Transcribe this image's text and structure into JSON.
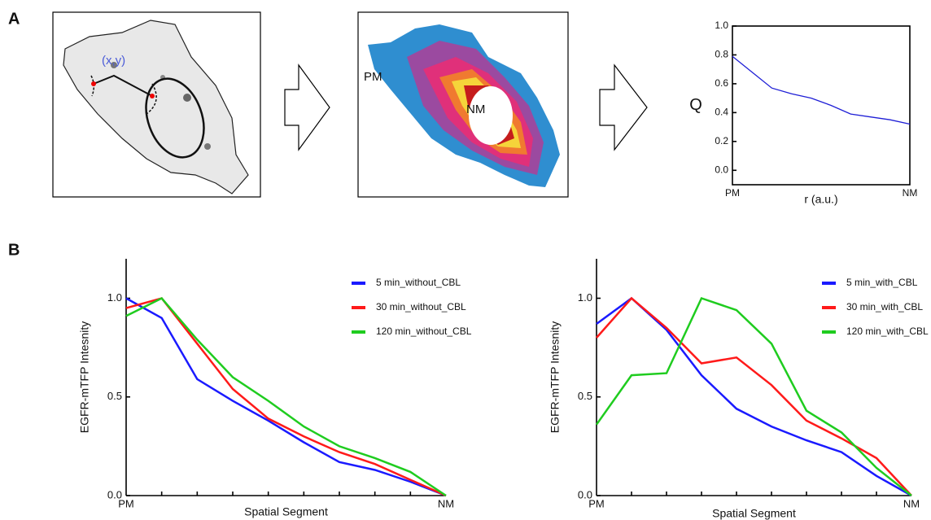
{
  "panels": [
    "A",
    "B"
  ],
  "images": [
    {
      "labels": [
        "(x,y)"
      ]
    },
    {
      "labels": [
        "PM",
        "NM"
      ]
    }
  ],
  "chart_data": [
    {
      "type": "line",
      "xlabel": "r (a.u.)",
      "ylabel": "Q",
      "categories": [
        "PM",
        null,
        null,
        null,
        null,
        null,
        null,
        null,
        null,
        "NM"
      ],
      "values": [
        0.79,
        0.68,
        0.57,
        0.53,
        0.5,
        0.45,
        0.39,
        0.37,
        0.35,
        0.32
      ],
      "color": "#1f1fd6",
      "ylim": [
        -0.1,
        1.0
      ],
      "yticks": [
        {
          "value": 0,
          "label": "0.0"
        },
        0.2,
        0.4,
        0.6,
        0.8,
        {
          "value": 1,
          "label": "1.0"
        }
      ]
    },
    {
      "type": "line",
      "xlabel": "Spatial Segment",
      "ylabel": "EGFR-mTFP Intesnity",
      "legend": "upper right",
      "categories": [
        "PM",
        null,
        null,
        null,
        null,
        null,
        null,
        null,
        null,
        "NM"
      ],
      "series": [
        {
          "name": "5 min_without_CBL",
          "color": "#1a1aff",
          "values": [
            1.0,
            0.9,
            0.59,
            0.48,
            0.38,
            0.27,
            0.17,
            0.13,
            0.07,
            0.0
          ]
        },
        {
          "name": "30 min_without_CBL",
          "color": "#ff1a1a",
          "values": [
            0.95,
            1.0,
            0.77,
            0.54,
            0.39,
            0.3,
            0.22,
            0.16,
            0.08,
            0.0
          ]
        },
        {
          "name": "120 min_without_CBL",
          "color": "#1fcc1f",
          "values": [
            0.91,
            1.0,
            0.79,
            0.6,
            0.48,
            0.35,
            0.25,
            0.19,
            0.12,
            0.0
          ]
        }
      ],
      "ylim": [
        0,
        1.2
      ],
      "yticks": [
        {
          "value": 0,
          "label": "0.0"
        },
        0.5,
        {
          "value": 1,
          "label": "1.0"
        }
      ]
    },
    {
      "type": "line",
      "xlabel": "Spatial Segment",
      "ylabel": "EGFR-mTFP Intesnity",
      "legend": "upper right",
      "categories": [
        "PM",
        null,
        null,
        null,
        null,
        null,
        null,
        null,
        null,
        "NM"
      ],
      "series": [
        {
          "name": "5 min_with_CBL",
          "color": "#1a1aff",
          "values": [
            0.87,
            1.0,
            0.84,
            0.61,
            0.44,
            0.35,
            0.28,
            0.22,
            0.1,
            0.0
          ]
        },
        {
          "name": "30 min_with_CBL",
          "color": "#ff1a1a",
          "values": [
            0.8,
            1.0,
            0.85,
            0.67,
            0.7,
            0.56,
            0.38,
            0.29,
            0.19,
            0.0
          ]
        },
        {
          "name": "120 min_with_CBL",
          "color": "#1fcc1f",
          "values": [
            0.36,
            0.61,
            0.62,
            1.0,
            0.94,
            0.77,
            0.43,
            0.32,
            0.14,
            0.0
          ]
        }
      ],
      "ylim": [
        0,
        1.2
      ],
      "yticks": [
        {
          "value": 0,
          "label": "0.0"
        },
        0.5,
        {
          "value": 1,
          "label": "1.0"
        }
      ]
    }
  ]
}
